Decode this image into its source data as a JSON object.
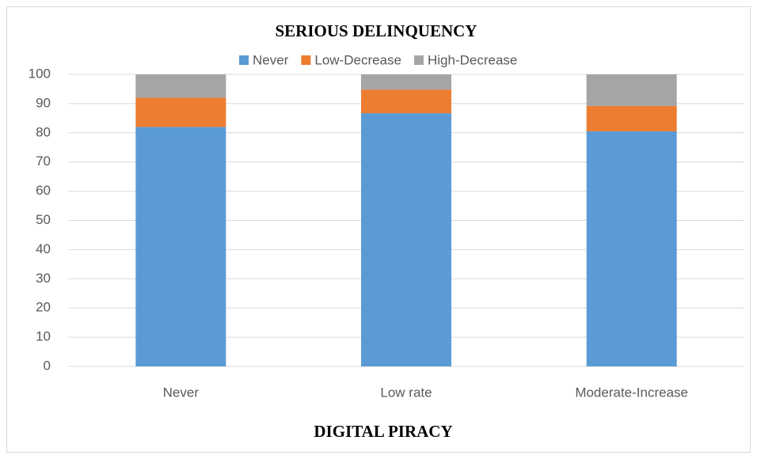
{
  "chart_data": {
    "type": "bar",
    "stacked": true,
    "title": "SERIOUS DELINQUENCY",
    "x_label": "DIGITAL PIRACY",
    "categories": [
      "Never",
      "Low rate",
      "Moderate-Increase"
    ],
    "series": [
      {
        "name": "Never",
        "color": "#5b9bd5",
        "values": [
          82,
          86.7,
          80.5
        ]
      },
      {
        "name": "Low-Decrease",
        "color": "#ed7d31",
        "values": [
          10,
          8.1,
          8.7
        ]
      },
      {
        "name": "High-Decrease",
        "color": "#a5a5a5",
        "values": [
          8,
          5.2,
          10.8
        ]
      }
    ],
    "ylim": [
      0,
      100
    ],
    "yticks": [
      0,
      10,
      20,
      30,
      40,
      50,
      60,
      70,
      80,
      90,
      100
    ],
    "grid": true,
    "legend": "top"
  }
}
